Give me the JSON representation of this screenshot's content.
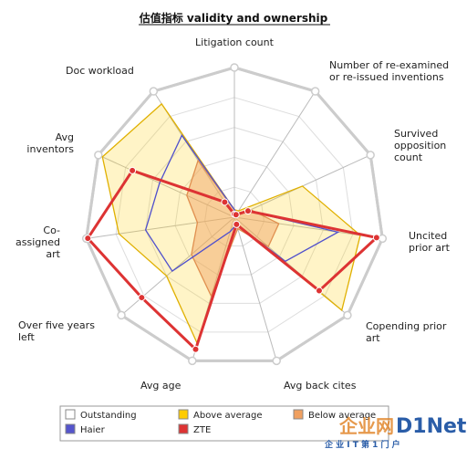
{
  "chart_data": {
    "type": "radar",
    "title": "估值指标 validity and ownership",
    "axes": [
      "Litigation count",
      "Number of re-examined|or re-issued inventions",
      "Survived|opposition|count",
      "Uncited|prior art",
      "Copending prior|art",
      "Avg back cites",
      "Avg age",
      "Over five years|left",
      "Co-|assigned|art",
      "Avg|inventors",
      "Doc workload"
    ],
    "rmax": 1.0,
    "grid_levels": 5,
    "series": [
      {
        "name": "Outstanding",
        "color": "#ffffff",
        "stroke": "#cccccc",
        "fill_opacity": 0,
        "values": [
          1.0,
          1.0,
          1.0,
          1.0,
          1.0,
          1.0,
          1.0,
          1.0,
          1.0,
          1.0,
          1.0
        ]
      },
      {
        "name": "Above average",
        "color": "#ffcc00",
        "stroke": "#e0b000",
        "fill_opacity": 0.22,
        "values": [
          0.05,
          0.05,
          0.5,
          0.85,
          0.95,
          0.05,
          0.88,
          0.6,
          0.78,
          0.97,
          0.9
        ]
      },
      {
        "name": "Below average",
        "color": "#f0a060",
        "stroke": "#e09050",
        "fill_opacity": 0.45,
        "values": [
          0.05,
          0.03,
          0.12,
          0.3,
          0.3,
          0.08,
          0.55,
          0.38,
          0.25,
          0.35,
          0.45
        ]
      },
      {
        "name": "Haier",
        "color": "#5555cc",
        "stroke": "#5050cc",
        "fill_opacity": 0,
        "values": [
          0.05,
          0.03,
          0.1,
          0.7,
          0.45,
          0.05,
          0.1,
          0.55,
          0.6,
          0.55,
          0.65
        ]
      },
      {
        "name": "ZTE",
        "color": "#dd3333",
        "stroke": "#dd3333",
        "fill_opacity": 0,
        "values": [
          0.02,
          0.02,
          0.1,
          0.96,
          0.75,
          0.05,
          0.92,
          0.82,
          0.99,
          0.75,
          0.12
        ]
      }
    ]
  },
  "watermark": {
    "main": "企业网",
    "brand": "D1Net",
    "sub": "企 业 I T 第 1 门 户"
  }
}
